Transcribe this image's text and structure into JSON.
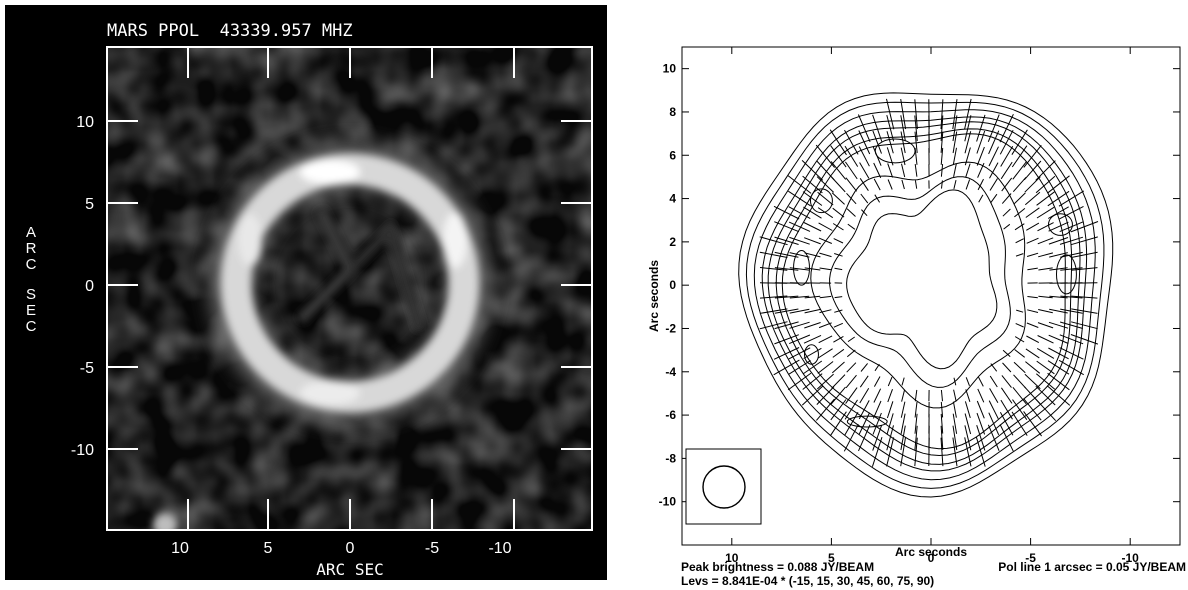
{
  "left_panel": {
    "title": "MARS PPOL  43339.957 MHZ",
    "xlabel": "ARC SEC",
    "ylabel": "ARC SEC",
    "x_ticks": [
      "10",
      "5",
      "0",
      "-5",
      "-10"
    ],
    "y_ticks": [
      "10",
      "5",
      "0",
      "-5",
      "-10"
    ]
  },
  "right_panel": {
    "xlabel": "Arc seconds",
    "ylabel": "Arc seconds",
    "x_ticks": [
      "10",
      "5",
      "0",
      "-5",
      "-10"
    ],
    "y_ticks": [
      "10",
      "8",
      "6",
      "4",
      "2",
      "0",
      "-2",
      "-4",
      "-6",
      "-8",
      "-10"
    ],
    "footer_peak": "Peak brightness = 0.088 JY/BEAM",
    "footer_pol": "Pol line 1 arcsec = 0.05 JY/BEAM",
    "footer_levs": "Levs = 8.841E-04 * (-15, 15, 30, 45, 60, 75, 90)"
  },
  "chart_data": [
    {
      "type": "heatmap",
      "title": "MARS PPOL  43339.957 MHZ",
      "xlabel": "ARC SEC",
      "ylabel": "ARC SEC",
      "xlim": [
        15,
        -15
      ],
      "ylim": [
        -15,
        14
      ],
      "colormap": "grayscale",
      "feature": "bright ring of radius ~4 arcsec centred at (0,0)",
      "colors": {
        "background": "#000000",
        "ring": "#e6e6e6"
      }
    },
    {
      "type": "contour",
      "xlabel": "Arc seconds",
      "ylabel": "Arc seconds",
      "xlim": [
        12.5,
        -12.5
      ],
      "ylim": [
        -12,
        11
      ],
      "contour_levels_multiplier": 0.0008841,
      "contour_levels": [
        -15,
        15,
        30,
        45,
        60,
        75,
        90
      ],
      "peak_brightness_jy_beam": 0.088,
      "pol_line_scale": "1 arcsec = 0.05 JY/BEAM",
      "beam_center": [
        9.7,
        -9.7
      ]
    }
  ]
}
